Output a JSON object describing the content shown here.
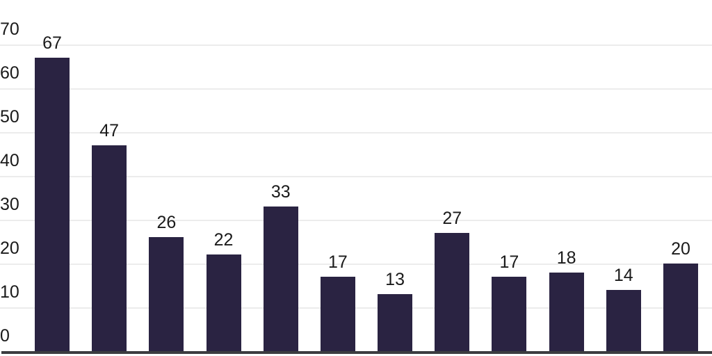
{
  "chart_data": {
    "type": "bar",
    "values": [
      67,
      47,
      26,
      22,
      33,
      17,
      13,
      27,
      17,
      18,
      14,
      20
    ],
    "bar_value_labels": [
      "67",
      "47",
      "26",
      "22",
      "33",
      "17",
      "13",
      "27",
      "17",
      "18",
      "14",
      "20"
    ],
    "y_ticks": [
      0,
      10,
      20,
      30,
      40,
      50,
      60,
      70
    ],
    "y_tick_labels": [
      "0",
      "10",
      "20",
      "30",
      "40",
      "50",
      "60",
      "70"
    ],
    "ylim": [
      0,
      70
    ],
    "grid": true,
    "legend": false,
    "x_category_labels_shown": false,
    "colors": {
      "bar": "#2a2342",
      "gridline": "#ececec",
      "axis_line": "#3c3c40",
      "text": "#1a1a1a",
      "background": "#ffffff"
    }
  }
}
